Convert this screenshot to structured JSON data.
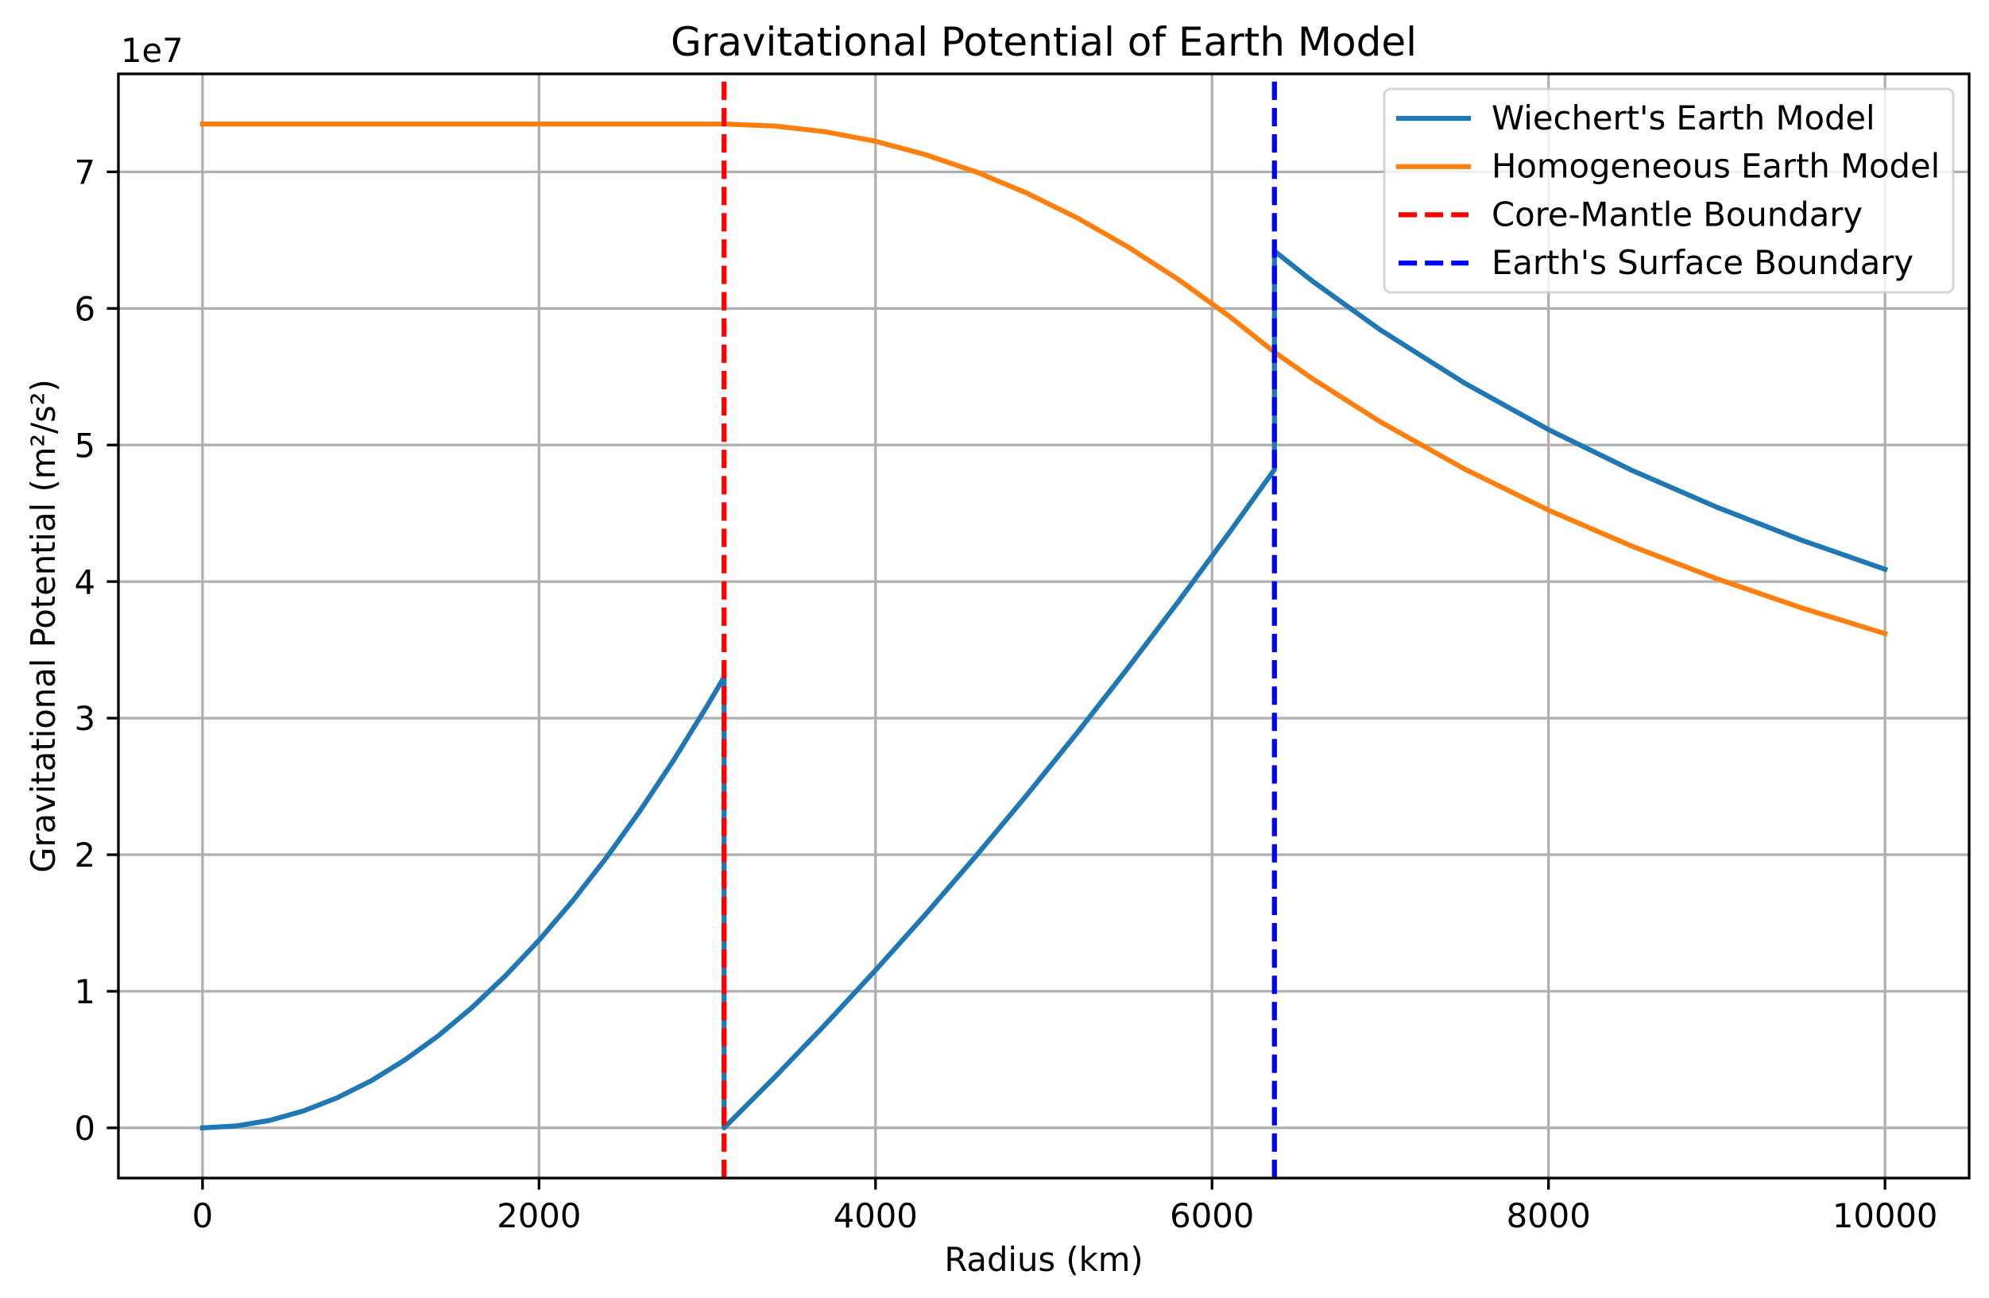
{
  "chart_data": {
    "type": "line",
    "title": "Gravitational Potential of Earth Model",
    "xlabel": "Radius (km)",
    "ylabel": "Gravitational Potential (m²/s²)",
    "y_offset_text": "1e7",
    "xlim": [
      -500,
      10500
    ],
    "ylim": [
      -3675000.0,
      77175000.0
    ],
    "xticks": [
      0,
      2000,
      4000,
      6000,
      8000,
      10000
    ],
    "xtick_labels": [
      "0",
      "2000",
      "4000",
      "6000",
      "8000",
      "10000"
    ],
    "yticks": [
      0,
      10000000.0,
      20000000.0,
      30000000.0,
      40000000.0,
      50000000.0,
      60000000.0,
      70000000.0
    ],
    "ytick_labels": [
      "0",
      "1",
      "2",
      "3",
      "4",
      "5",
      "6",
      "7"
    ],
    "grid": true,
    "legend_position": "top-right",
    "series": [
      {
        "name": "Wiechert's Earth Model",
        "color": "#1f77b4",
        "style": "solid",
        "x": [
          0,
          200,
          400,
          600,
          800,
          1000,
          1200,
          1400,
          1600,
          1800,
          2000,
          2200,
          2400,
          2600,
          2800,
          3000,
          3100,
          3100,
          3400,
          3700,
          4000,
          4300,
          4600,
          4900,
          5200,
          5500,
          5800,
          6100,
          6371,
          6371,
          6600,
          7000,
          7500,
          8000,
          8500,
          9000,
          9500,
          10000
        ],
        "y": [
          0,
          140000.0,
          550000.0,
          1240000.0,
          2200000.0,
          3430000.0,
          4950000.0,
          6730000.0,
          8790000.0,
          11130000.0,
          13740000.0,
          16620000.0,
          19780000.0,
          23210000.0,
          26920000.0,
          30910000.0,
          33000000.0,
          0,
          3700000.0,
          7550000.0,
          11540000.0,
          15670000.0,
          19950000.0,
          24380000.0,
          28950000.0,
          33670000.0,
          38530000.0,
          43540000.0,
          48200000.0,
          64200000.0,
          61970000.0,
          58430000.0,
          54540000.0,
          51130000.0,
          48120000.0,
          45450000.0,
          43050000.0,
          40900000.0
        ]
      },
      {
        "name": "Homogeneous Earth Model",
        "color": "#ff7f0e",
        "style": "solid",
        "x": [
          0,
          1000,
          2000,
          3100,
          3400,
          3700,
          4000,
          4300,
          4600,
          4900,
          5200,
          5500,
          5800,
          6100,
          6371,
          6600,
          7000,
          7500,
          8000,
          8500,
          9000,
          9500,
          10000
        ],
        "y": [
          73500000.0,
          73500000.0,
          73500000.0,
          73500000.0,
          73360000.0,
          72940000.0,
          72240000.0,
          71250000.0,
          69990000.0,
          68440000.0,
          66620000.0,
          64510000.0,
          62120000.0,
          59450000.0,
          56800000.0,
          54830000.0,
          51700000.0,
          48250000.0,
          45230000.0,
          42570000.0,
          40210000.0,
          38090000.0,
          36190000.0
        ]
      }
    ],
    "vlines": [
      {
        "name": "Core-Mantle Boundary",
        "x": 3100,
        "color": "#ff0000",
        "style": "dashed"
      },
      {
        "name": "Earth's Surface Boundary",
        "x": 6371,
        "color": "#0000ff",
        "style": "dashed"
      }
    ]
  }
}
